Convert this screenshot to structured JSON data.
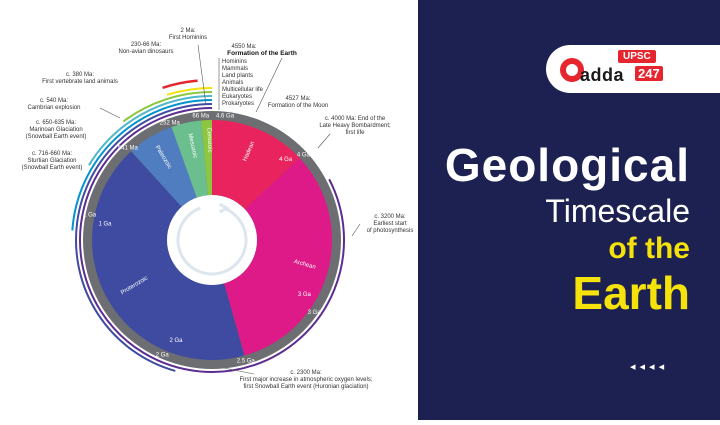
{
  "header": {
    "badge": "UPSC",
    "brand": "adda",
    "brand_num": "247"
  },
  "title": {
    "line1": "Geological",
    "line2": "Timescale",
    "line3": "of the",
    "line4": "Earth"
  },
  "decor": {
    "arrows": "◂◂◂◂"
  },
  "ring": {
    "eons": [
      "Hadean",
      "Archean",
      "Proterozoic"
    ],
    "eras": [
      "Paleozoic",
      "Mesozoic",
      "Cenozoic"
    ],
    "ga_labels": [
      "4.6 Ga",
      "4 Ga",
      "3 Ga",
      "2.5 Ga",
      "2 Ga",
      "1 Ga",
      "541 Ma",
      "252 Ma",
      "66 Ma"
    ],
    "inner_labels": [
      "4 Ga",
      "3 Ga",
      "2 Ga",
      "1 Ga"
    ]
  },
  "annotations": {
    "hominins": "2 Ma:\nFirst Hominins",
    "dinos": "230-66 Ma:\nNon-avian dinosaurs",
    "formation": "4550 Ma:",
    "formation_b": "Formation of the Earth",
    "legend": [
      "Hominins",
      "Mammals",
      "Land plants",
      "Animals",
      "Multicellular life",
      "Eukaryotes",
      "Prokaryotes"
    ],
    "vertebrate": "c. 380 Ma:\nFirst vertebrate land animals",
    "moon": "4527 Ma:\nFormation of the Moon",
    "cambrian": "c. 540 Ma:\nCambrian explosion",
    "marinoan": "c. 650-635 Ma:\nMarinoan Glaciation\n(Snowball Earth event)",
    "sturtian": "c. 716-660 Ma:\nSturtian Glaciation\n(Snowball Earth event)",
    "bombard": "c. 4000 Ma: End of the\nLate Heavy Bombardment;\nfirst life",
    "photo": "c. 3200 Ma:\nEarliest start\nof photosynthesis",
    "oxygen": "c. 2300 Ma:\nFirst major increase in atmospheric oxygen levels;\nfirst Snowball Earth event (Huronian glaciation)"
  },
  "colors": {
    "panel": "#1d2151",
    "yellow": "#f4e20a",
    "hadean": "#e8235e",
    "archean": "#dd1a87",
    "proterozoic": "#3f4ba0",
    "paleozoic": "#4f7dbf",
    "mesozoic": "#6bbf8f",
    "cenozoic": "#8dc63f",
    "ring_gray": "#6d6e71"
  }
}
